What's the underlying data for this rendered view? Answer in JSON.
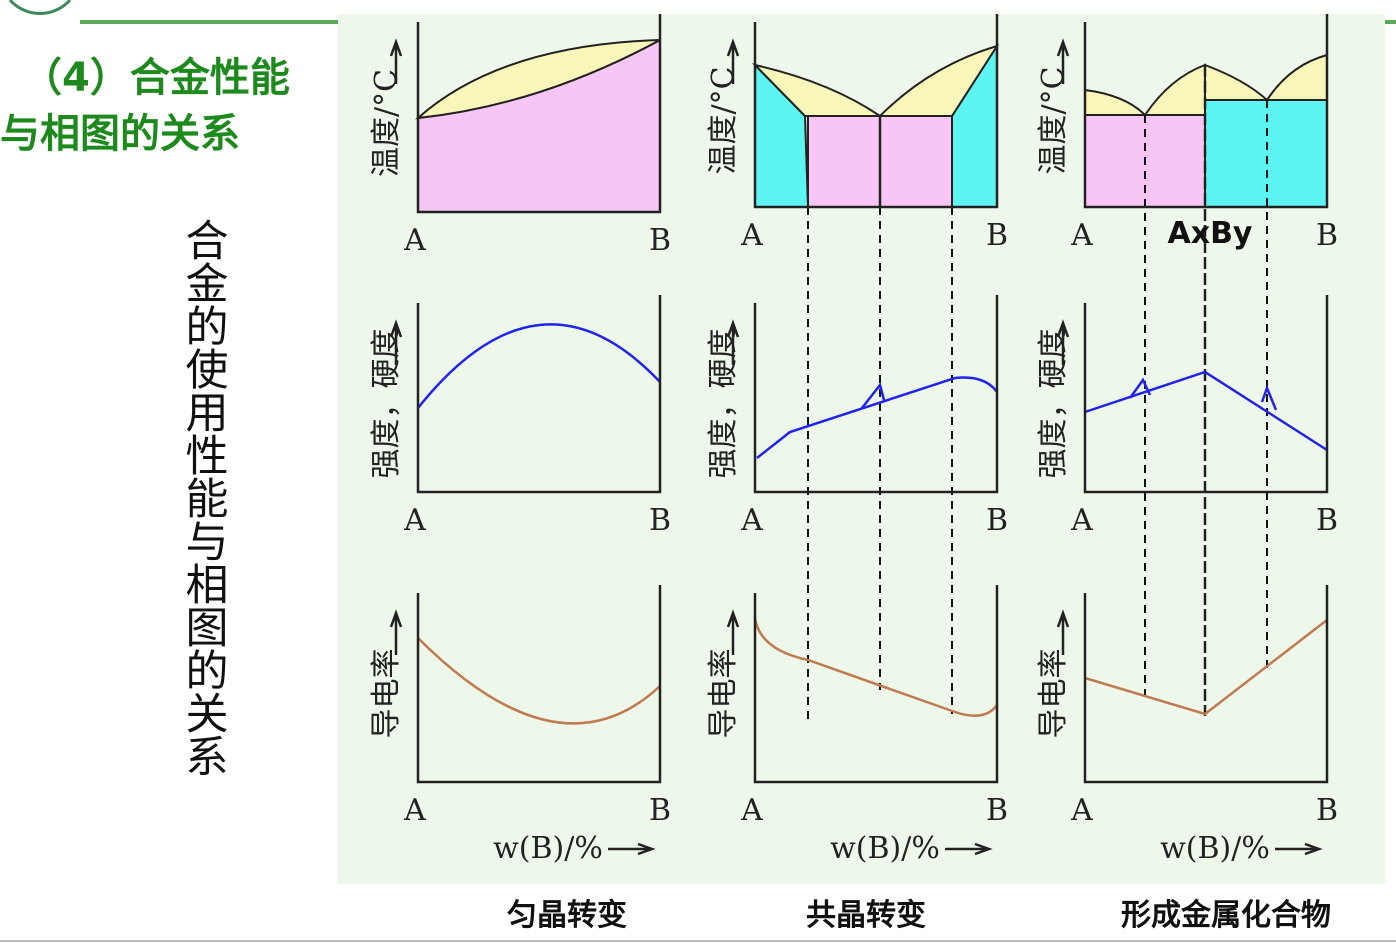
{
  "header": {
    "title_lines": [
      "（4）合金性能",
      "与相图的关系"
    ]
  },
  "side_text": "合金的使用性能与相图的关系",
  "axis_labels": {
    "temperature": "温度/°C",
    "strength": "强度，硬度",
    "conductivity": "导电率",
    "a": "A",
    "b": "B",
    "composition": "w(B)/%"
  },
  "compound_label": "AxBy",
  "columns": [
    {
      "caption": "匀晶转变"
    },
    {
      "caption": "共晶转变"
    },
    {
      "caption": "形成金属化合物"
    }
  ]
}
